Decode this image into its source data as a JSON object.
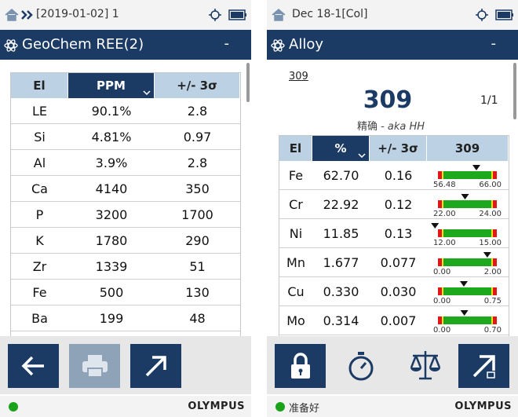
{
  "left": {
    "status": {
      "path": "[2019-01-02] 1"
    },
    "header": {
      "title": "GeoChem REE(2)",
      "menu": "-"
    },
    "table": {
      "columns": [
        "El",
        "PPM",
        "+/- 3σ"
      ],
      "rows": [
        [
          "LE",
          "90.1%",
          "2.8"
        ],
        [
          "Si",
          "4.81%",
          "0.97"
        ],
        [
          "Al",
          "3.9%",
          "2.8"
        ],
        [
          "Ca",
          "4140",
          "350"
        ],
        [
          "P",
          "3200",
          "1700"
        ],
        [
          "K",
          "1780",
          "290"
        ],
        [
          "Zr",
          "1339",
          "51"
        ],
        [
          "Fe",
          "500",
          "130"
        ],
        [
          "Ba",
          "199",
          "48"
        ]
      ]
    },
    "footer": {
      "brand": "OLYMPUS"
    }
  },
  "right": {
    "status": {
      "path": "Dec 18-1[Col]"
    },
    "header": {
      "title": "Alloy",
      "menu": "-"
    },
    "match": {
      "link": "309",
      "grade": "309",
      "page": "1/1",
      "quality": "精确 -",
      "aka": "aka HH"
    },
    "table": {
      "columns": [
        "El",
        "%",
        "+/- 3σ",
        "309"
      ],
      "rows": [
        [
          "Fe",
          "62.70",
          "0.16",
          "56.48",
          "66.00"
        ],
        [
          "Cr",
          "22.92",
          "0.12",
          "22.00",
          "24.00"
        ],
        [
          "Ni",
          "11.85",
          "0.13",
          "12.00",
          "15.00"
        ],
        [
          "Mn",
          "1.677",
          "0.077",
          "0.00",
          "2.00"
        ],
        [
          "Cu",
          "0.330",
          "0.030",
          "0.00",
          "0.75"
        ],
        [
          "Mo",
          "0.314",
          "0.007",
          "0.00",
          "0.70"
        ]
      ]
    },
    "footer": {
      "state": "准备好",
      "brand": "OLYMPUS"
    }
  }
}
